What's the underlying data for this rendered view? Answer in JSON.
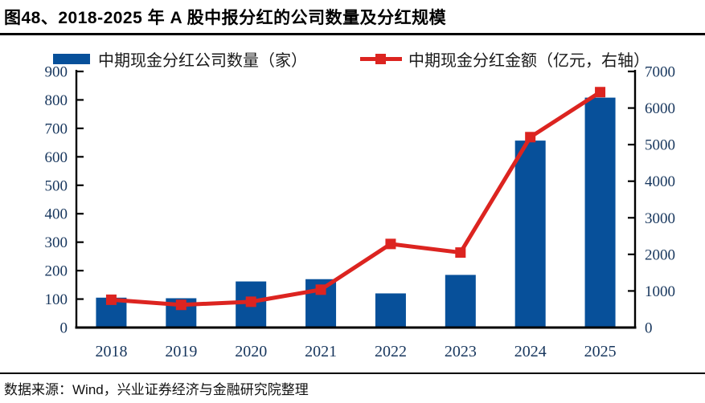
{
  "title": "图48、2018-2025 年 A 股中报分红的公司数量及分红规模",
  "footer": "数据来源：Wind，兴业证券经济与金融研究院整理",
  "colors": {
    "bar": "#07509A",
    "line": "#DC2420",
    "axis_text": "#17365D",
    "axis_line": "#000000"
  },
  "chart_data": {
    "type": "bar+line",
    "title": "2018-2025 年 A 股中报分红的公司数量及分红规模",
    "categories": [
      "2018",
      "2019",
      "2020",
      "2021",
      "2022",
      "2023",
      "2024",
      "2025"
    ],
    "series": [
      {
        "name": "中期现金分红公司数量（家）",
        "type": "bar",
        "axis": "left",
        "color": "#07509A",
        "values": [
          105,
          103,
          162,
          170,
          120,
          185,
          657,
          808
        ]
      },
      {
        "name": "中期现金分红金额（亿元，右轴）",
        "type": "line",
        "axis": "right",
        "color": "#DC2420",
        "values": [
          760,
          620,
          705,
          1035,
          2285,
          2050,
          5205,
          6435
        ]
      }
    ],
    "left_axis": {
      "min": 0,
      "max": 900,
      "step": 100,
      "ticks": [
        "0",
        "100",
        "200",
        "300",
        "400",
        "500",
        "600",
        "700",
        "800",
        "900"
      ]
    },
    "right_axis": {
      "min": 0,
      "max": 7000,
      "step": 1000,
      "ticks": [
        "0",
        "1000",
        "2000",
        "3000",
        "4000",
        "5000",
        "6000",
        "7000"
      ]
    },
    "legend_position": "top",
    "grid": false
  }
}
